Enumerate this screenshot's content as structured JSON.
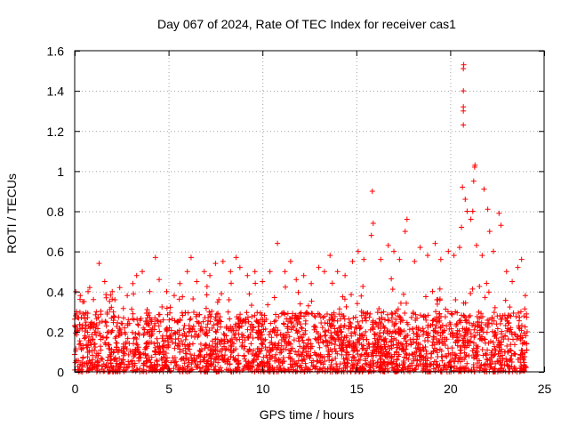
{
  "chart_data": {
    "type": "scatter",
    "title": "Day 067 of 2024, Rate Of TEC Index for receiver cas1",
    "xlabel": "GPS time / hours",
    "ylabel": "ROTI / TECUs",
    "xlim": [
      0,
      25
    ],
    "ylim": [
      0,
      1.6
    ],
    "xticks": [
      0,
      5,
      10,
      15,
      20,
      25
    ],
    "xtick_labels": [
      "0",
      "5",
      "10",
      "15",
      "20",
      "25"
    ],
    "yticks": [
      0,
      0.2,
      0.4,
      0.6,
      0.8,
      1,
      1.2,
      1.4,
      1.6
    ],
    "ytick_labels": [
      "0",
      "0.2",
      "0.4",
      "0.6",
      "0.8",
      "1",
      "1.2",
      "1.4",
      "1.6"
    ],
    "grid": true,
    "marker": "+",
    "color": "#ff0000",
    "series": [
      {
        "name": "cas1",
        "points": [
          [
            0.1,
            0.3
          ],
          [
            0.3,
            0.38
          ],
          [
            0.5,
            0.35
          ],
          [
            0.8,
            0.42
          ],
          [
            1.0,
            0.36
          ],
          [
            1.3,
            0.54
          ],
          [
            1.6,
            0.45
          ],
          [
            2.0,
            0.4
          ],
          [
            2.4,
            0.42
          ],
          [
            2.8,
            0.38
          ],
          [
            3.1,
            0.44
          ],
          [
            3.3,
            0.48
          ],
          [
            3.6,
            0.5
          ],
          [
            4.0,
            0.4
          ],
          [
            4.3,
            0.57
          ],
          [
            4.5,
            0.46
          ],
          [
            4.9,
            0.4
          ],
          [
            5.3,
            0.38
          ],
          [
            5.6,
            0.44
          ],
          [
            6.0,
            0.5
          ],
          [
            6.2,
            0.57
          ],
          [
            6.5,
            0.45
          ],
          [
            6.9,
            0.5
          ],
          [
            7.2,
            0.48
          ],
          [
            7.5,
            0.54
          ],
          [
            7.9,
            0.55
          ],
          [
            8.3,
            0.5
          ],
          [
            8.6,
            0.57
          ],
          [
            8.8,
            0.52
          ],
          [
            9.2,
            0.48
          ],
          [
            9.6,
            0.5
          ],
          [
            10.0,
            0.45
          ],
          [
            10.4,
            0.5
          ],
          [
            10.8,
            0.64
          ],
          [
            11.2,
            0.5
          ],
          [
            11.5,
            0.55
          ],
          [
            11.8,
            0.46
          ],
          [
            12.2,
            0.48
          ],
          [
            12.6,
            0.44
          ],
          [
            13.0,
            0.52
          ],
          [
            13.3,
            0.5
          ],
          [
            13.6,
            0.58
          ],
          [
            14.0,
            0.5
          ],
          [
            14.4,
            0.48
          ],
          [
            14.8,
            0.55
          ],
          [
            15.1,
            0.6
          ],
          [
            15.4,
            0.56
          ],
          [
            15.8,
            0.68
          ],
          [
            15.9,
            0.74
          ],
          [
            15.85,
            0.9
          ],
          [
            16.3,
            0.56
          ],
          [
            16.7,
            0.63
          ],
          [
            17.0,
            0.6
          ],
          [
            17.3,
            0.56
          ],
          [
            17.6,
            0.7
          ],
          [
            17.7,
            0.76
          ],
          [
            18.1,
            0.55
          ],
          [
            18.4,
            0.62
          ],
          [
            18.8,
            0.58
          ],
          [
            19.2,
            0.64
          ],
          [
            19.5,
            0.56
          ],
          [
            19.9,
            0.6
          ],
          [
            20.2,
            0.58
          ],
          [
            20.5,
            0.62
          ],
          [
            20.6,
            0.72
          ],
          [
            20.65,
            0.92
          ],
          [
            20.7,
            1.23
          ],
          [
            20.7,
            1.3
          ],
          [
            20.7,
            1.32
          ],
          [
            20.7,
            1.4
          ],
          [
            20.7,
            1.51
          ],
          [
            20.72,
            1.53
          ],
          [
            20.8,
            0.86
          ],
          [
            20.9,
            0.8
          ],
          [
            21.1,
            0.76
          ],
          [
            21.2,
            0.8
          ],
          [
            21.25,
            0.95
          ],
          [
            21.3,
            1.02
          ],
          [
            21.32,
            1.03
          ],
          [
            21.4,
            0.63
          ],
          [
            21.7,
            0.58
          ],
          [
            21.8,
            0.91
          ],
          [
            22.0,
            0.81
          ],
          [
            22.1,
            0.7
          ],
          [
            22.3,
            0.6
          ],
          [
            22.6,
            0.79
          ],
          [
            22.7,
            0.73
          ],
          [
            23.0,
            0.5
          ],
          [
            23.3,
            0.45
          ],
          [
            23.6,
            0.52
          ],
          [
            23.8,
            0.56
          ],
          [
            24.0,
            0.38
          ]
        ]
      }
    ]
  }
}
